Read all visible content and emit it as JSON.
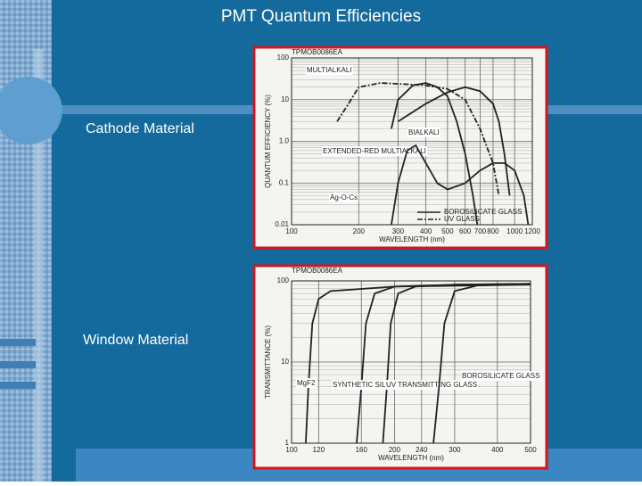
{
  "title": "PMT Quantum Efficiencies",
  "labels": [
    "Cathode Material",
    "Window Material"
  ],
  "chart_data": [
    {
      "type": "line",
      "code": "TPMOB0086EA",
      "xlabel": "WAVELENGTH (nm)",
      "ylabel": "QUANTUM EFFICIENCY (%)",
      "xscale": "log",
      "yscale": "log",
      "grid": true,
      "xlim": [
        100,
        1200
      ],
      "ylim": [
        0.01,
        100
      ],
      "xticks": [
        100,
        200,
        300,
        400,
        500,
        600,
        700,
        800,
        1000,
        1200
      ],
      "yticks": [
        100,
        10,
        {
          "value": 1,
          "label": "1.0"
        },
        0.1,
        0.01
      ],
      "legend": [
        {
          "name": "BOROSILICATE GLASS",
          "dash": false
        },
        {
          "name": "UV GLASS",
          "dash": true
        }
      ],
      "series": [
        {
          "name": "MULTIALKALI",
          "color": "#222222",
          "dash": true,
          "x": [
            160,
            180,
            200,
            250,
            300,
            400,
            500,
            600,
            700,
            800,
            850
          ],
          "values": [
            3,
            8,
            20,
            25,
            24,
            22,
            18,
            10,
            2,
            0.3,
            0.05
          ]
        },
        {
          "name": "BIALKALI",
          "color": "#222222",
          "dash": false,
          "x": [
            280,
            300,
            350,
            400,
            450,
            500,
            550,
            600,
            650,
            680
          ],
          "values": [
            2,
            10,
            22,
            25,
            20,
            12,
            3,
            0.5,
            0.05,
            0.01
          ]
        },
        {
          "name": "EXTENDED-RED MULTIALKALI",
          "color": "#222222",
          "dash": false,
          "x": [
            300,
            400,
            500,
            600,
            700,
            800,
            850,
            900,
            950
          ],
          "values": [
            3,
            8,
            15,
            20,
            16,
            8,
            3,
            0.5,
            0.05
          ]
        },
        {
          "name": "Ag-O-Cs",
          "color": "#222222",
          "dash": false,
          "x": [
            280,
            300,
            330,
            360,
            400,
            450,
            500,
            600,
            700,
            800,
            900,
            1000,
            1100,
            1150
          ],
          "values": [
            0.01,
            0.1,
            0.6,
            0.8,
            0.3,
            0.1,
            0.07,
            0.1,
            0.2,
            0.3,
            0.3,
            0.2,
            0.05,
            0.01
          ]
        }
      ]
    },
    {
      "type": "line",
      "code": "TPMOB0086EA",
      "xlabel": "WAVELENGTH (nm)",
      "ylabel": "TRANSMITTANCE (%)",
      "xscale": "log",
      "yscale": "log",
      "grid": true,
      "xlim": [
        100,
        500
      ],
      "ylim": [
        1,
        100
      ],
      "xticks": [
        100,
        120,
        160,
        200,
        240,
        300,
        400,
        500
      ],
      "yticks": [
        100,
        10,
        1
      ],
      "series": [
        {
          "name": "MgF2",
          "color": "#222222",
          "dash": false,
          "x": [
            110,
            112,
            115,
            120,
            130,
            200,
            500
          ],
          "values": [
            1,
            5,
            30,
            60,
            75,
            85,
            90
          ]
        },
        {
          "name": "SYNTHETIC SILICA",
          "color": "#222222",
          "dash": false,
          "x": [
            155,
            160,
            165,
            175,
            200,
            300,
            500
          ],
          "values": [
            1,
            5,
            30,
            70,
            85,
            90,
            92
          ]
        },
        {
          "name": "UV TRANSMITTING GLASS",
          "color": "#222222",
          "dash": false,
          "x": [
            185,
            190,
            195,
            205,
            230,
            300,
            500
          ],
          "values": [
            1,
            5,
            30,
            70,
            85,
            90,
            92
          ]
        },
        {
          "name": "BOROSILICATE GLASS",
          "color": "#222222",
          "dash": false,
          "x": [
            260,
            270,
            280,
            300,
            350,
            500
          ],
          "values": [
            1,
            5,
            30,
            75,
            88,
            92
          ]
        }
      ]
    }
  ]
}
